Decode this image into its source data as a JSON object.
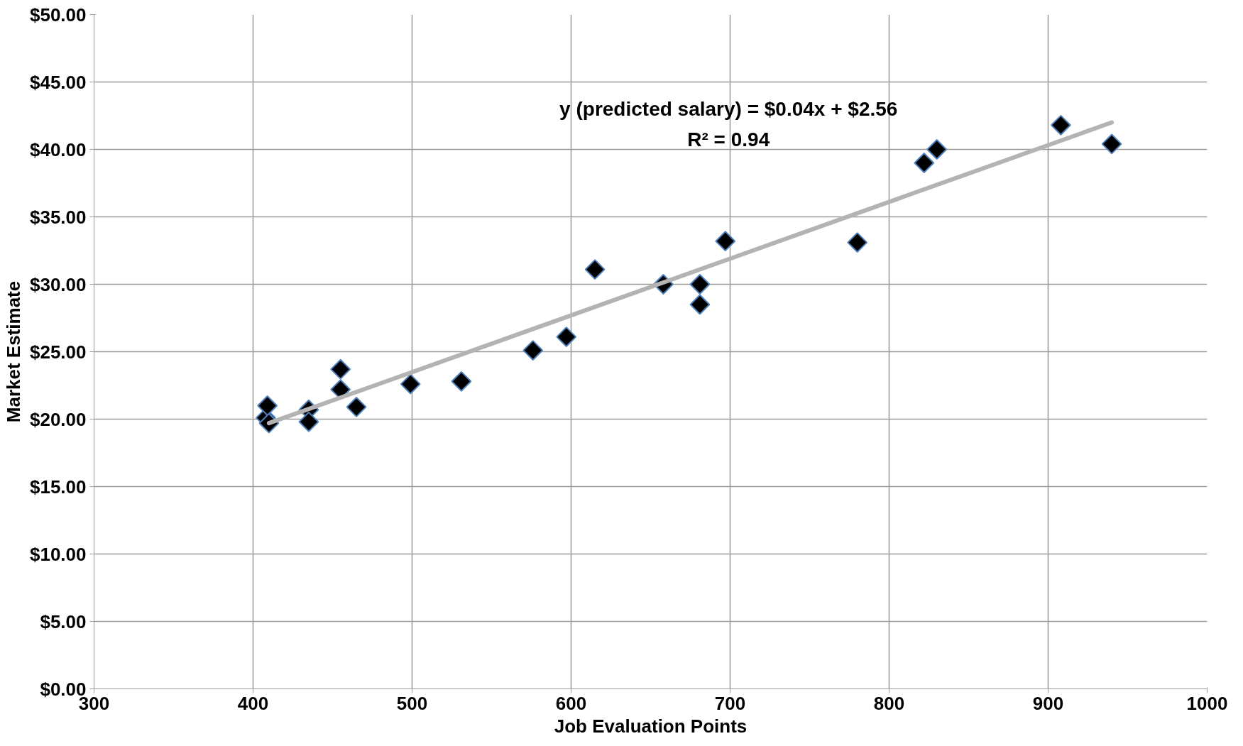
{
  "chart_data": {
    "type": "scatter",
    "xlabel": "Job Evaluation Points",
    "ylabel": "Market Estimate",
    "annotations": [
      "y (predicted salary) = $0.04x + $2.56",
      "R² = 0.94"
    ],
    "xlim": [
      300,
      1000
    ],
    "xticks": [
      300,
      400,
      500,
      600,
      700,
      800,
      900,
      1000
    ],
    "ylim": [
      0,
      50
    ],
    "yticks": [
      {
        "value": 0,
        "label": "$0.00"
      },
      {
        "value": 5,
        "label": "$5.00"
      },
      {
        "value": 10,
        "label": "$10.00"
      },
      {
        "value": 15,
        "label": "$15.00"
      },
      {
        "value": 20,
        "label": "$20.00"
      },
      {
        "value": 25,
        "label": "$25.00"
      },
      {
        "value": 30,
        "label": "$30.00"
      },
      {
        "value": 35,
        "label": "$35.00"
      },
      {
        "value": 40,
        "label": "$40.00"
      },
      {
        "value": 45,
        "label": "$45.00"
      },
      {
        "value": 50,
        "label": "$50.00"
      }
    ],
    "grid": true,
    "marker": "diamond",
    "series": [
      {
        "color": "#000000",
        "x": [
          408,
          409,
          410,
          435,
          435,
          455,
          455,
          465,
          499,
          531,
          576,
          597,
          615,
          658,
          681,
          681,
          697,
          780,
          822,
          830,
          908,
          940
        ],
        "values": [
          20.1,
          21.0,
          19.7,
          20.7,
          19.8,
          23.7,
          22.2,
          20.9,
          22.6,
          22.8,
          25.1,
          26.1,
          31.1,
          30.0,
          30.0,
          28.5,
          33.2,
          33.1,
          39.0,
          40.0,
          41.8,
          40.4
        ]
      },
      {
        "type": "line",
        "marker": "none",
        "color": "#b3b3b3",
        "x": [
          410,
          940
        ],
        "values": [
          19.7,
          42.0
        ]
      }
    ]
  }
}
